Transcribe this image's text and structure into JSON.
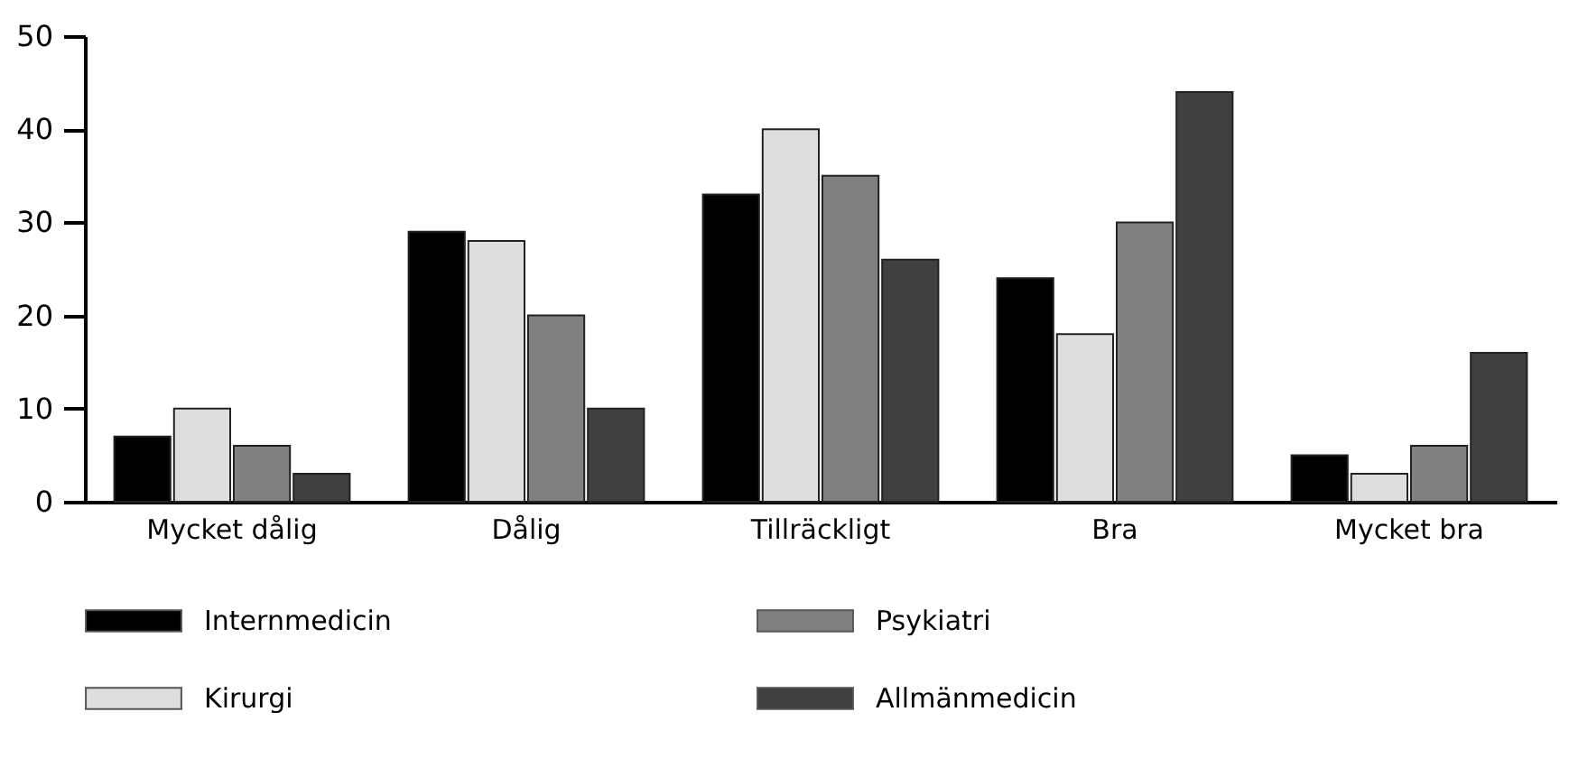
{
  "chart_data": {
    "type": "bar",
    "categories": [
      "Mycket dålig",
      "Dålig",
      "Tillräckligt",
      "Bra",
      "Mycket bra"
    ],
    "series": [
      {
        "name": "Internmedicin",
        "color": "#000000",
        "values": [
          7,
          29,
          33,
          24,
          5
        ]
      },
      {
        "name": "Kirurgi",
        "color": "#dedede",
        "values": [
          10,
          28,
          40,
          18,
          3
        ]
      },
      {
        "name": "Psykiatri",
        "color": "#808080",
        "values": [
          6,
          20,
          35,
          30,
          6
        ]
      },
      {
        "name": "Allmänmedicin",
        "color": "#404040",
        "values": [
          3,
          10,
          26,
          44,
          16
        ]
      }
    ],
    "ylim": [
      0,
      50
    ],
    "yticks": [
      0,
      10,
      20,
      30,
      40,
      50
    ],
    "grid": false,
    "legend": "bottom"
  }
}
